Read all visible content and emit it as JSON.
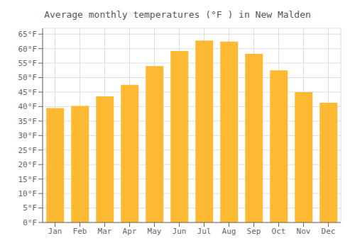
{
  "chart_data": {
    "type": "bar",
    "title": "Average monthly temperatures (°F ) in New Malden",
    "categories": [
      "Jan",
      "Feb",
      "Mar",
      "Apr",
      "May",
      "Jun",
      "Jul",
      "Aug",
      "Sep",
      "Oct",
      "Nov",
      "Dec"
    ],
    "values": [
      39.5,
      40.2,
      43.5,
      47.5,
      54.0,
      59.2,
      62.8,
      62.4,
      58.2,
      52.5,
      45.0,
      41.3
    ],
    "color": "#FDB931",
    "ylim": [
      0,
      67
    ],
    "yticks": [
      {
        "value": 0,
        "label": "0°F"
      },
      {
        "value": 5,
        "label": "5°F"
      },
      {
        "value": 10,
        "label": "10°F"
      },
      {
        "value": 15,
        "label": "15°F"
      },
      {
        "value": 20,
        "label": "20°F"
      },
      {
        "value": 25,
        "label": "25°F"
      },
      {
        "value": 30,
        "label": "30°F"
      },
      {
        "value": 35,
        "label": "35°F"
      },
      {
        "value": 40,
        "label": "40°F"
      },
      {
        "value": 45,
        "label": "45°F"
      },
      {
        "value": 50,
        "label": "50°F"
      },
      {
        "value": 55,
        "label": "55°F"
      },
      {
        "value": 60,
        "label": "60°F"
      },
      {
        "value": 65,
        "label": "65°F"
      }
    ],
    "grid": true
  }
}
